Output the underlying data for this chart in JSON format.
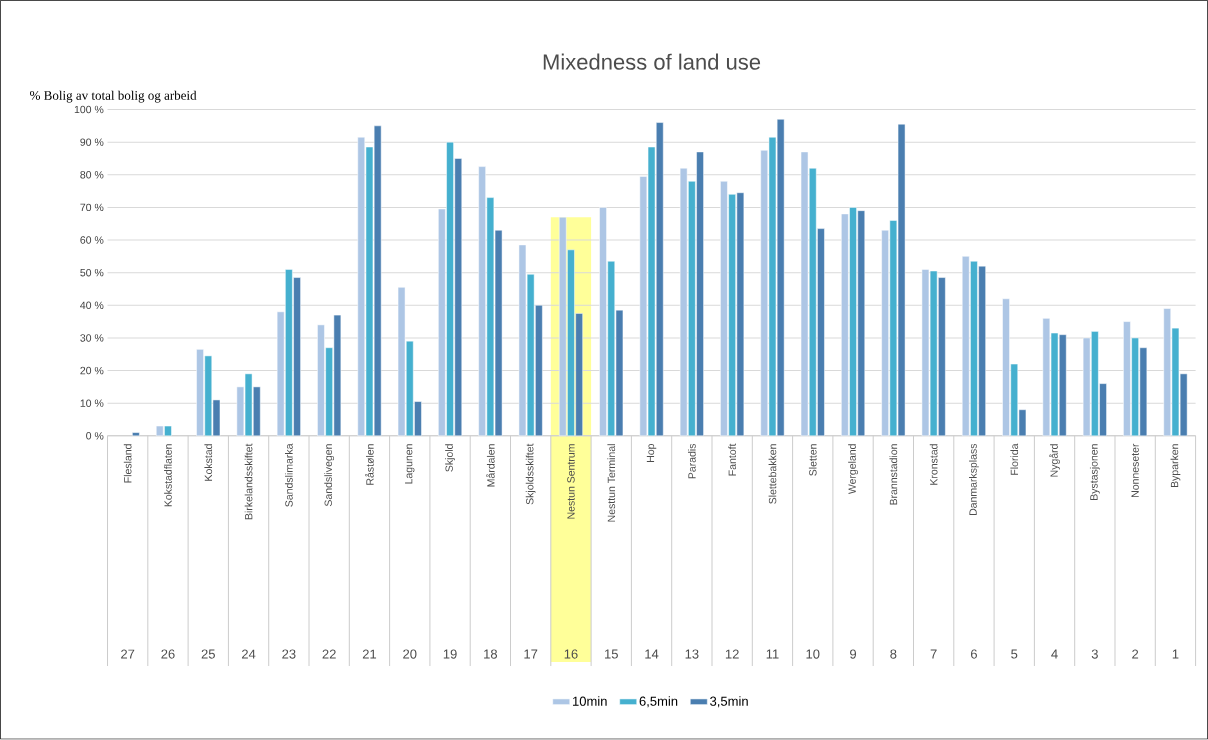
{
  "chart_data": {
    "type": "bar",
    "title": "Mixedness of land use",
    "ylabel": "% Bolig av total bolig og arbeid",
    "categories": [
      "Flesland",
      "Kokstadflaten",
      "Kokstad",
      "Birkelandsskiftet",
      "Sandslimarka",
      "Sandslivegen",
      "Råstølen",
      "Lagunen",
      "Skjold",
      "Mårdalen",
      "Skjoldsskiftet",
      "Nestun Sentrum",
      "Nesttun Terminal",
      "Hop",
      "Paradis",
      "Fantoft",
      "Slettebakken",
      "Sletten",
      "Wergeland",
      "Brannstadion",
      "Kronstad",
      "Danmarksplass",
      "Florida",
      "Nygård",
      "Bystasjonen",
      "Nonneseter",
      "Byparken"
    ],
    "series": [
      {
        "name": "10min",
        "color": "#adc6e5",
        "values": [
          null,
          3,
          26.5,
          15,
          38,
          34,
          91.5,
          45.5,
          69.5,
          82.5,
          58.5,
          67,
          70,
          79.5,
          82,
          78,
          87.5,
          87,
          68,
          63,
          51,
          55,
          42,
          36,
          30,
          35,
          39
        ]
      },
      {
        "name": "6,5min",
        "color": "#45b0cf",
        "values": [
          null,
          3,
          24.5,
          19,
          51,
          27,
          88.5,
          29,
          90,
          73,
          49.5,
          57,
          53.5,
          88.5,
          78,
          74,
          91.5,
          82,
          70,
          66,
          50.5,
          53.5,
          22,
          31.5,
          32,
          30,
          33
        ]
      },
      {
        "name": "3,5min",
        "color": "#4a7eb0",
        "values": [
          1,
          null,
          11,
          15,
          48.5,
          37,
          95,
          10.5,
          85,
          63,
          40,
          37.5,
          38.5,
          96,
          87,
          74.5,
          97,
          63.5,
          69,
          95.5,
          48.5,
          52,
          8,
          31,
          16,
          27,
          19
        ]
      }
    ],
    "ylim": [
      0,
      100
    ],
    "yticks": [
      {
        "value": 0,
        "label": "0 %"
      },
      {
        "value": 10,
        "label": "10 %"
      },
      {
        "value": 20,
        "label": "20 %"
      },
      {
        "value": 30,
        "label": "30 %"
      },
      {
        "value": 40,
        "label": "40 %"
      },
      {
        "value": 50,
        "label": "50 %"
      },
      {
        "value": 60,
        "label": "60 %"
      },
      {
        "value": 70,
        "label": "70 %"
      },
      {
        "value": 80,
        "label": "80 %"
      },
      {
        "value": 90,
        "label": "90 %"
      },
      {
        "value": 100,
        "label": "100 %"
      }
    ],
    "grid": "y",
    "legend": "bottom",
    "bands": [
      {
        "axis": "x",
        "from": "Nestun Sentrum",
        "to": "Nestun Sentrum",
        "color": "#ffff99"
      }
    ],
    "annotations": [
      "27",
      "26",
      "25",
      "24",
      "23",
      "22",
      "21",
      "20",
      "19",
      "18",
      "17",
      "16",
      "15",
      "14",
      "13",
      "12",
      "11",
      "10",
      "9",
      "8",
      "7",
      "6",
      "5",
      "4",
      "3",
      "2",
      "1"
    ]
  }
}
